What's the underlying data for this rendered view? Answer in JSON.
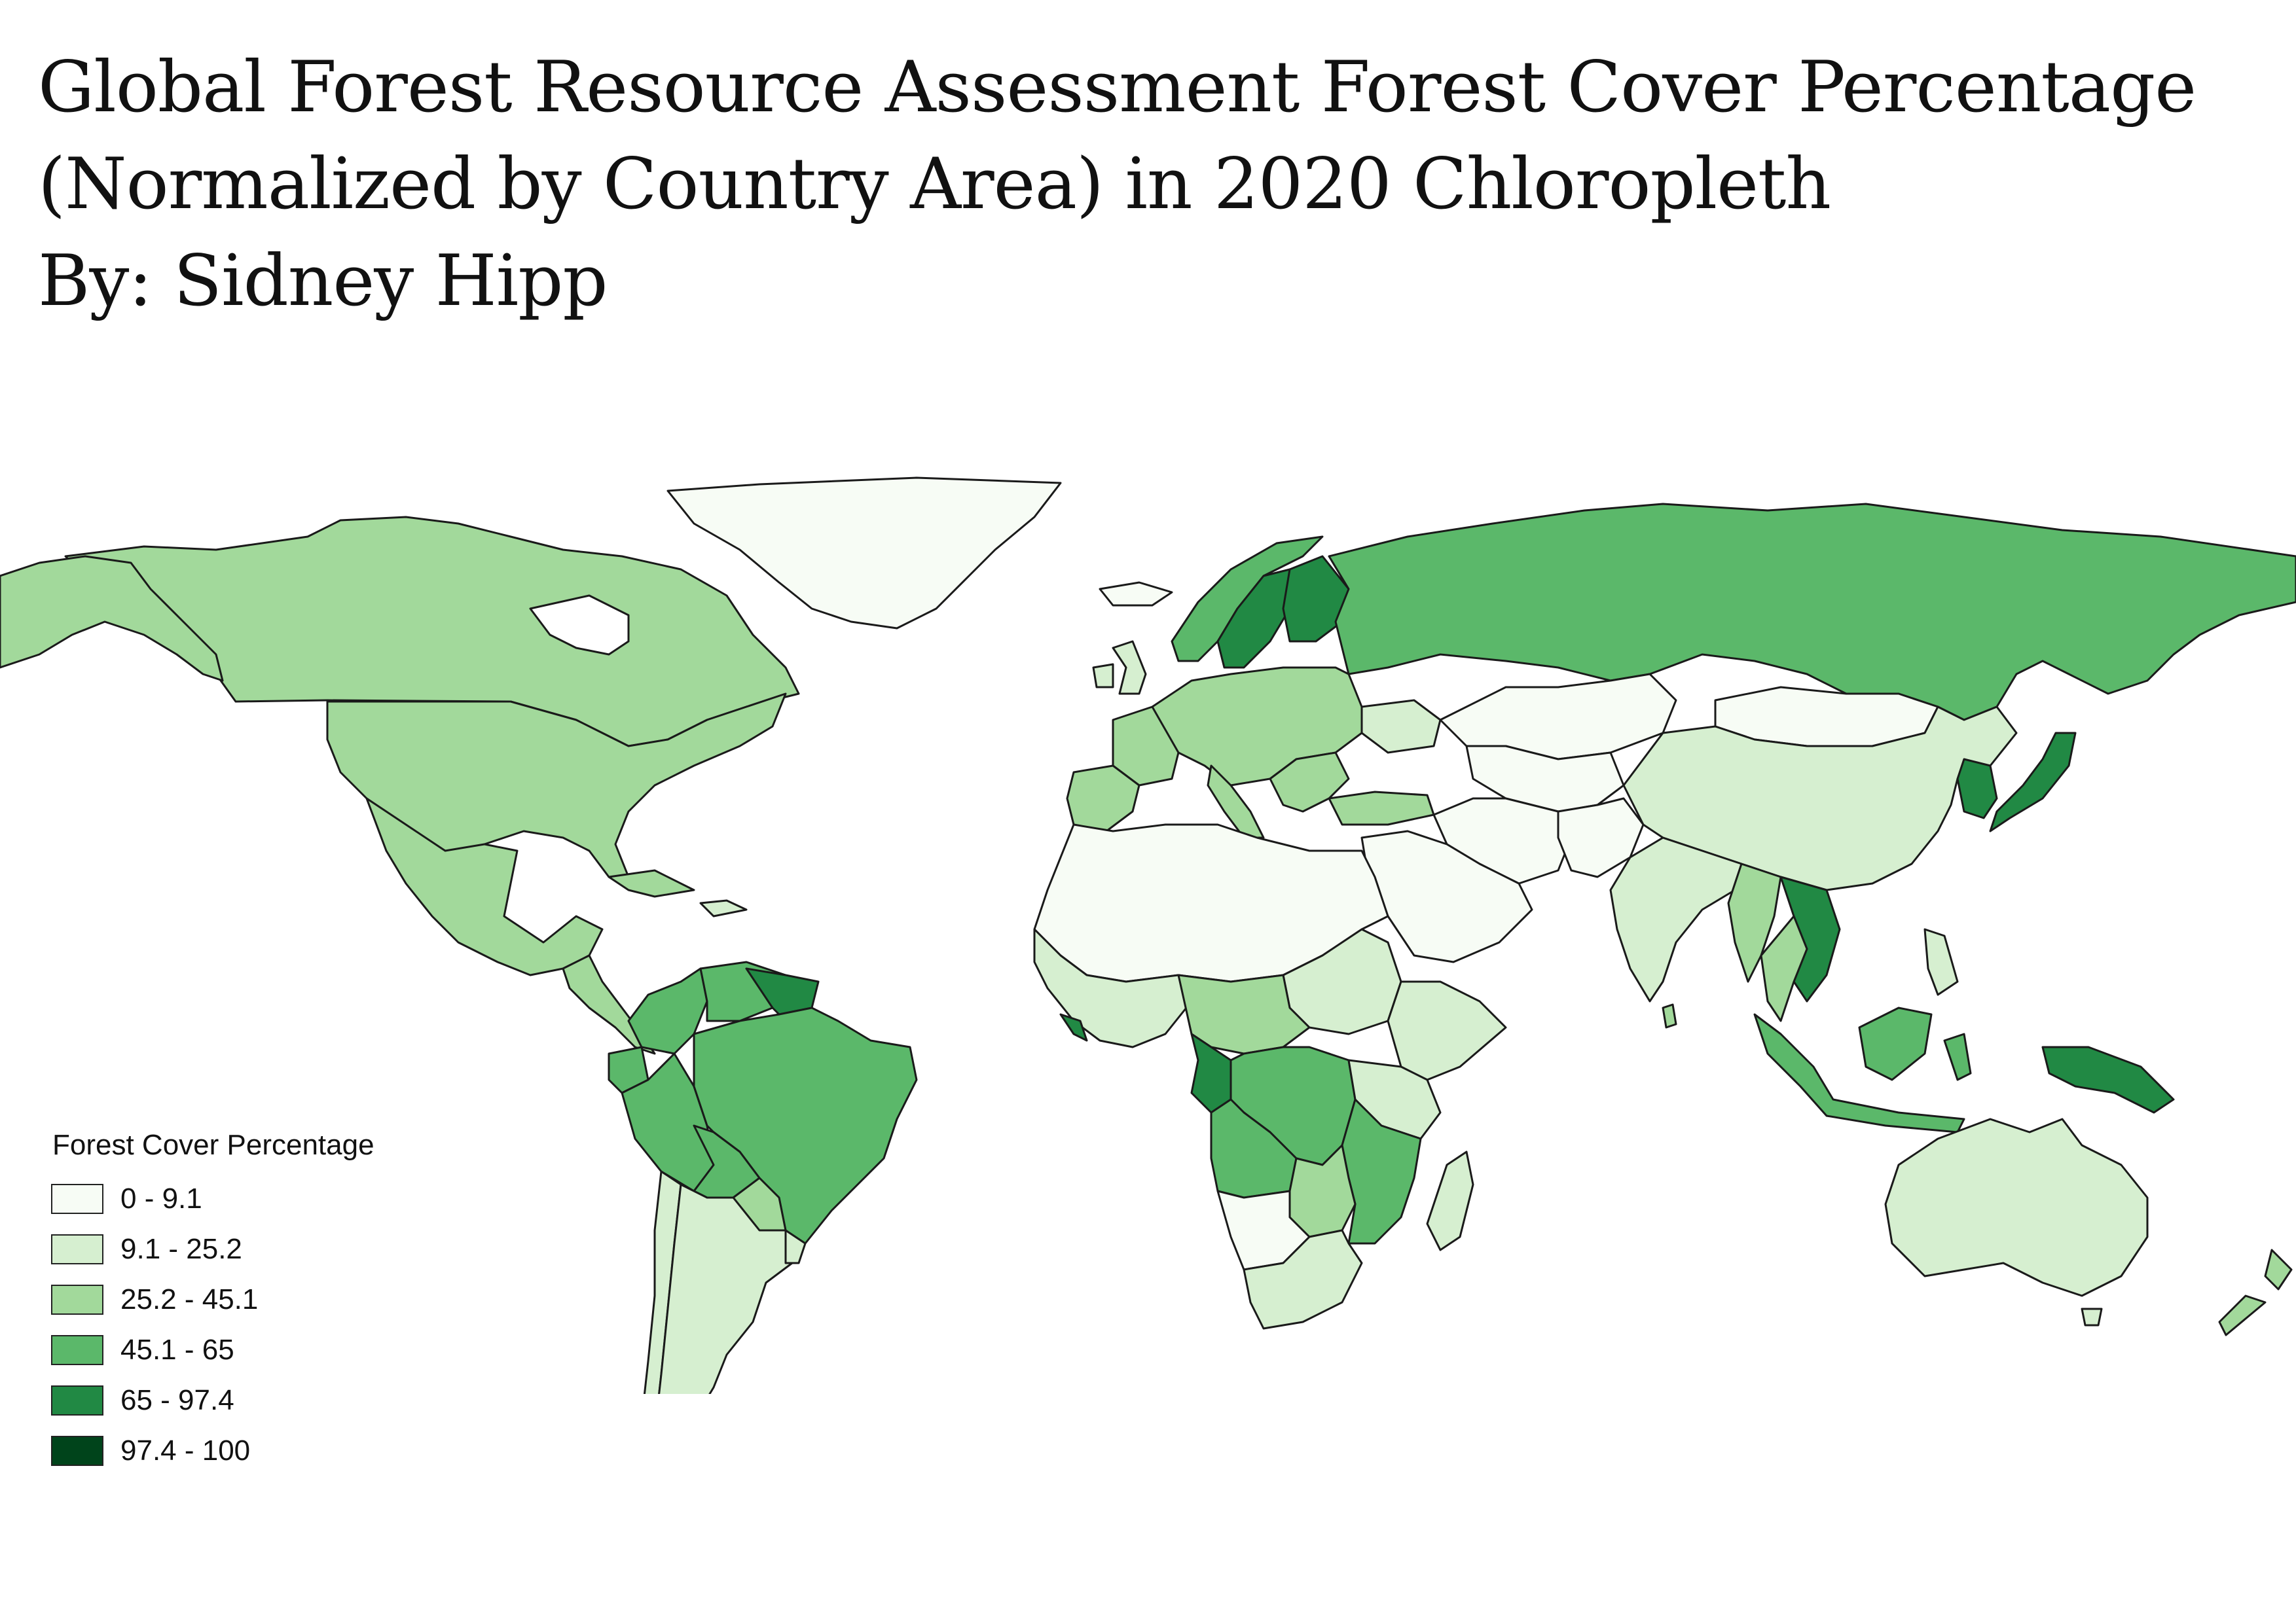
{
  "title": {
    "line1": "Global Forest Resource Assessment Forest Cover Percentage",
    "line2": "(Normalized by Country Area) in 2020 Chloropleth",
    "line3": "By: Sidney Hipp"
  },
  "legend": {
    "title": "Forest Cover Percentage",
    "classes": [
      {
        "label": "0 - 9.1",
        "color": "#f7fcf5"
      },
      {
        "label": "9.1 - 25.2",
        "color": "#d6efd0"
      },
      {
        "label": "25.2 - 45.1",
        "color": "#a2d99b"
      },
      {
        "label": "45.1 - 65",
        "color": "#5bb86a"
      },
      {
        "label": "65 - 97.4",
        "color": "#218944"
      },
      {
        "label": "97.4 - 100",
        "color": "#00441b"
      }
    ]
  },
  "colors": {
    "border": "#1a1a1a",
    "ocean": "#ffffff"
  }
}
